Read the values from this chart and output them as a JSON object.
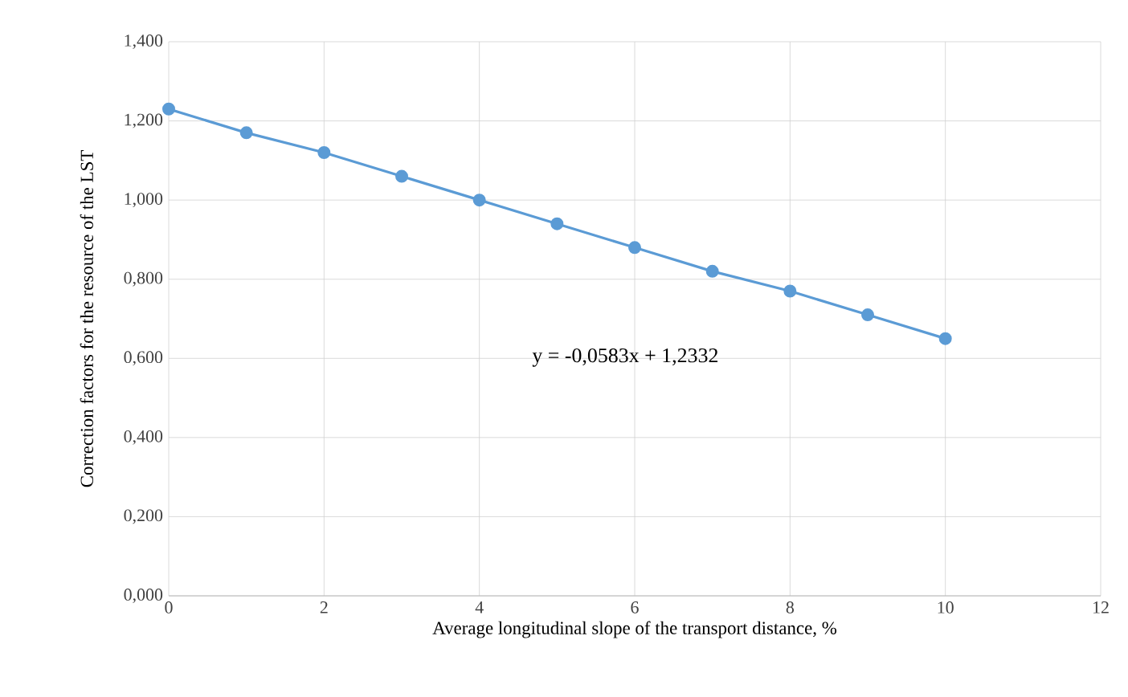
{
  "chart_data": {
    "type": "line",
    "xlabel": "Average longitudinal  slope of the transport distance, %",
    "ylabel": "Correction factors for the resource of the LST",
    "x": [
      0,
      1,
      2,
      3,
      4,
      5,
      6,
      7,
      8,
      9,
      10
    ],
    "series": [
      {
        "color": "#5b9bd5",
        "values": [
          1.23,
          1.17,
          1.12,
          1.06,
          1.0,
          0.94,
          0.88,
          0.82,
          0.77,
          0.71,
          0.65
        ]
      }
    ],
    "xlim": [
      0,
      12
    ],
    "xticks": [
      0,
      2,
      4,
      6,
      8,
      10,
      12
    ],
    "ylim": [
      0,
      1.4
    ],
    "yticks": [
      {
        "value": 0,
        "label": "0,000"
      },
      {
        "value": 0.2,
        "label": "0,200"
      },
      {
        "value": 0.4,
        "label": "0,400"
      },
      {
        "value": 0.6,
        "label": "0,600"
      },
      {
        "value": 0.8,
        "label": "0,800"
      },
      {
        "value": 1.0,
        "label": "1,000"
      },
      {
        "value": 1.2,
        "label": "1,200"
      },
      {
        "value": 1.4,
        "label": "1,400"
      }
    ],
    "annotations": [
      "y = -0,0583x + 1,2332"
    ],
    "grid": true,
    "marker": "circle",
    "line_style": "solid"
  }
}
